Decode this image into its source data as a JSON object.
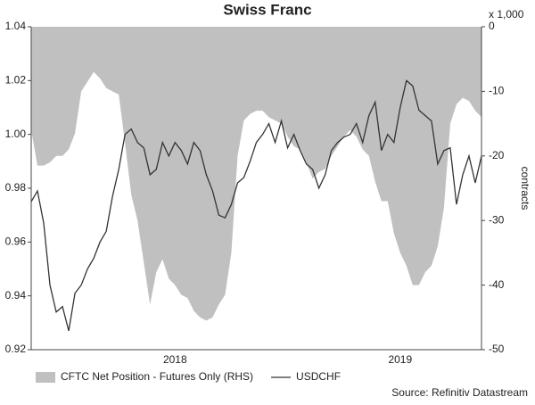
{
  "chart_data": {
    "type": "combo",
    "title": "Swiss Franc",
    "y2_unit": "x 1,000",
    "y2label": "contracts",
    "source": "Source: Refinitiv Datastream",
    "categories": [
      null,
      null,
      null,
      null,
      null,
      null,
      null,
      null,
      null,
      null,
      null,
      null,
      null,
      null,
      null,
      null,
      null,
      null,
      null,
      null,
      null,
      null,
      null,
      "2018",
      null,
      null,
      null,
      null,
      null,
      null,
      null,
      null,
      null,
      null,
      null,
      null,
      null,
      null,
      null,
      null,
      null,
      null,
      null,
      null,
      null,
      null,
      null,
      null,
      null,
      null,
      null,
      null,
      null,
      null,
      null,
      null,
      null,
      null,
      null,
      "2019",
      null,
      null,
      null,
      null,
      null,
      null,
      null,
      null,
      null,
      null,
      null,
      null,
      null
    ],
    "ylim": [
      0.92,
      1.04
    ],
    "yticks": [
      0.92,
      0.94,
      0.96,
      0.98,
      {
        "value": 1,
        "label": "1.00"
      },
      1.02,
      1.04
    ],
    "y2lim": [
      -50,
      0
    ],
    "y2ticks": [
      -50,
      -40,
      -30,
      -20,
      -10,
      0
    ],
    "series": [
      {
        "name": "CFTC Net Position - Futures Only (RHS)",
        "type": "area",
        "axis": "y2",
        "color": "#c0c0c0",
        "values": [
          -16,
          -21.5,
          -21.5,
          -21,
          -20,
          -20,
          -19,
          -16.5,
          -10,
          -8.5,
          -7,
          -8,
          -9.5,
          -10,
          -10.5,
          -18,
          -26,
          -30,
          -36.5,
          -43,
          -38,
          -36,
          -39,
          -40,
          -41.5,
          -42,
          -44,
          -45,
          -45.5,
          -45,
          -43,
          -41.5,
          -35,
          -20,
          -14.5,
          -13.5,
          -13,
          -13,
          -14,
          -14.5,
          -15,
          -17,
          -18.5,
          -19,
          -21,
          -23.5,
          -22.5,
          -22,
          -20,
          -18.5,
          -17,
          -16,
          -17,
          -19,
          -20,
          -24,
          -27,
          -27,
          -32,
          -35,
          -37,
          -40,
          -40,
          -38,
          -37,
          -34,
          -28,
          -15,
          -12,
          -11,
          -11.5,
          -13,
          -14
        ]
      },
      {
        "name": "USDCHF",
        "type": "line",
        "color": "#333333",
        "values": [
          0.975,
          0.979,
          0.967,
          0.944,
          0.934,
          0.936,
          0.927,
          0.941,
          0.944,
          0.95,
          0.954,
          0.96,
          0.964,
          0.977,
          0.987,
          1.0,
          1.002,
          0.997,
          0.995,
          0.985,
          0.987,
          0.997,
          0.992,
          0.997,
          0.994,
          0.989,
          0.997,
          0.994,
          0.985,
          0.979,
          0.97,
          0.969,
          0.974,
          0.982,
          0.984,
          0.99,
          0.997,
          1.0,
          1.004,
          0.997,
          1.005,
          0.995,
          1.0,
          0.994,
          0.989,
          0.987,
          0.98,
          0.985,
          0.994,
          0.997,
          0.999,
          1.0,
          1.004,
          0.997,
          1.007,
          1.012,
          0.994,
          1.0,
          0.997,
          1.01,
          1.02,
          1.018,
          1.009,
          1.007,
          1.005,
          0.989,
          0.994,
          0.995,
          0.974,
          0.985,
          0.992,
          0.982,
          0.992
        ]
      }
    ]
  }
}
